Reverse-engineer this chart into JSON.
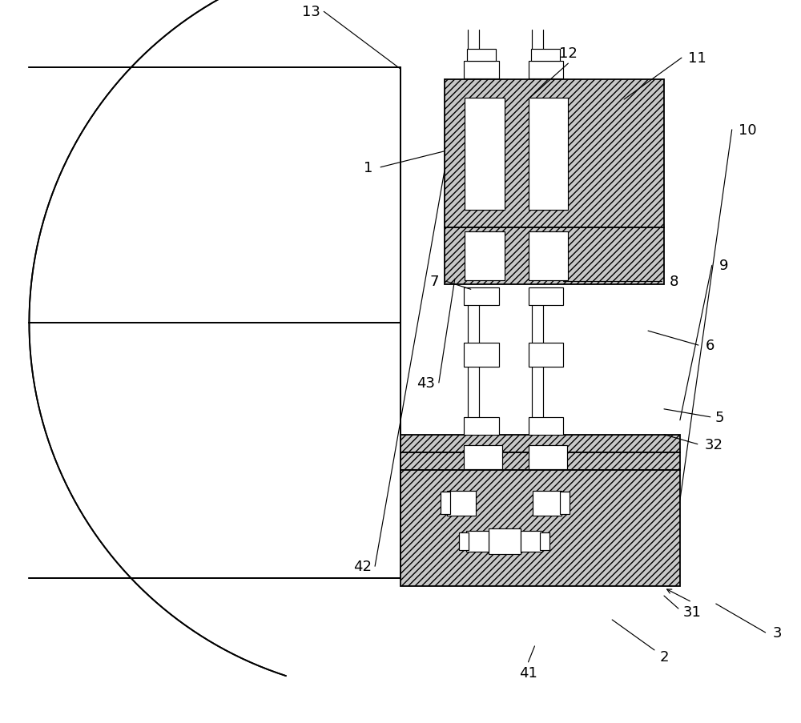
{
  "bg_color": "#ffffff",
  "line_color": "#000000",
  "fig_width": 10.0,
  "fig_height": 9.04,
  "hatch_fc": "#c8c8c8",
  "line_width": 1.3,
  "thin_lw": 0.85
}
